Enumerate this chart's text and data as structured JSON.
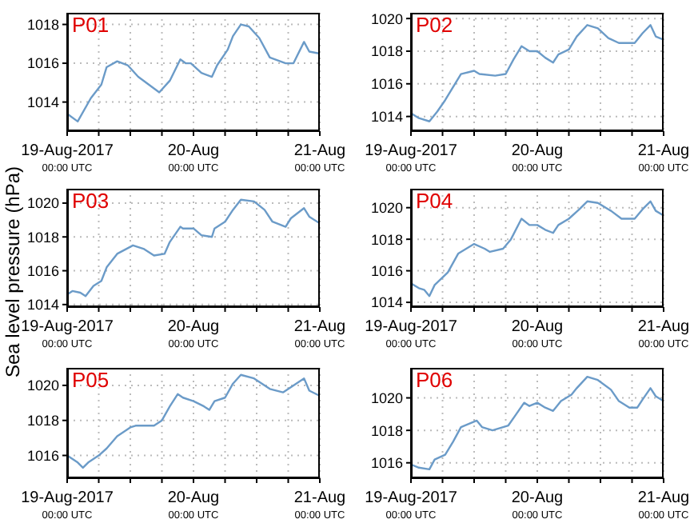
{
  "chart_data": [
    {
      "type": "line",
      "title": "P01",
      "ylabel": null,
      "x": [
        "2017-08-19T00:00",
        "2017-08-19T02:00",
        "2017-08-19T04:30",
        "2017-08-19T06:30",
        "2017-08-19T07:30",
        "2017-08-19T09:30",
        "2017-08-19T11:30",
        "2017-08-19T13:30",
        "2017-08-19T15:30",
        "2017-08-19T17:30",
        "2017-08-19T19:30",
        "2017-08-19T21:30",
        "2017-08-19T22:30",
        "2017-08-19T23:30",
        "2017-08-20T01:30",
        "2017-08-20T03:30",
        "2017-08-20T04:30",
        "2017-08-20T06:30",
        "2017-08-20T07:30",
        "2017-08-20T09:00",
        "2017-08-20T10:30",
        "2017-08-20T12:30",
        "2017-08-20T14:30",
        "2017-08-20T17:30",
        "2017-08-20T19:00",
        "2017-08-20T21:00",
        "2017-08-20T22:00",
        "2017-08-21T00:00"
      ],
      "series": [
        {
          "color": "#6b9bc8",
          "values": [
            1013.4,
            1013.0,
            1014.2,
            1014.9,
            1015.8,
            1016.1,
            1015.9,
            1015.3,
            1014.9,
            1014.5,
            1015.1,
            1016.2,
            1016.0,
            1016.0,
            1015.5,
            1015.3,
            1015.9,
            1016.7,
            1017.4,
            1018.0,
            1017.9,
            1017.3,
            1016.3,
            1016.0,
            1016.0,
            1017.1,
            1016.6,
            1016.5
          ]
        }
      ],
      "xlim": [
        "2017-08-19T00:00",
        "2017-08-21T00:00"
      ],
      "xticks": [
        {
          "value": "2017-08-19T00:00",
          "label": "19-Aug-2017\n00:00 UTC"
        },
        {
          "value": "2017-08-19T06:00",
          "label": null
        },
        {
          "value": "2017-08-19T12:00",
          "label": null
        },
        {
          "value": "2017-08-19T18:00",
          "label": null
        },
        {
          "value": "2017-08-20T00:00",
          "label": "20-Aug\n00:00 UTC"
        },
        {
          "value": "2017-08-20T06:00",
          "label": null
        },
        {
          "value": "2017-08-20T12:00",
          "label": null
        },
        {
          "value": "2017-08-20T18:00",
          "label": null
        },
        {
          "value": "2017-08-21T00:00",
          "label": "21-Aug\n00:00 UTC"
        }
      ],
      "ylim": [
        1012.5,
        1018.6
      ],
      "yticks": [
        1014,
        1016,
        1018
      ],
      "grid": true
    },
    {
      "type": "line",
      "title": "P02",
      "x": [
        "2017-08-19T00:00",
        "2017-08-19T01:30",
        "2017-08-19T03:30",
        "2017-08-19T05:00",
        "2017-08-19T06:30",
        "2017-08-19T08:00",
        "2017-08-19T09:30",
        "2017-08-19T12:00",
        "2017-08-19T13:00",
        "2017-08-19T16:00",
        "2017-08-19T18:00",
        "2017-08-19T19:30",
        "2017-08-19T21:00",
        "2017-08-19T22:30",
        "2017-08-20T00:00",
        "2017-08-20T01:30",
        "2017-08-20T03:00",
        "2017-08-20T04:00",
        "2017-08-20T06:00",
        "2017-08-20T07:30",
        "2017-08-20T09:30",
        "2017-08-20T11:30",
        "2017-08-20T13:30",
        "2017-08-20T15:30",
        "2017-08-20T18:30",
        "2017-08-20T20:00",
        "2017-08-20T21:30",
        "2017-08-20T22:30",
        "2017-08-21T00:00"
      ],
      "series": [
        {
          "color": "#6b9bc8",
          "values": [
            1014.2,
            1013.9,
            1013.7,
            1014.3,
            1015.0,
            1015.8,
            1016.6,
            1016.8,
            1016.6,
            1016.5,
            1016.6,
            1017.5,
            1018.3,
            1018.0,
            1018.0,
            1017.6,
            1017.3,
            1017.8,
            1018.1,
            1018.9,
            1019.6,
            1019.4,
            1018.8,
            1018.5,
            1018.5,
            1019.1,
            1019.6,
            1018.9,
            1018.7
          ]
        }
      ],
      "xlim": [
        "2017-08-19T00:00",
        "2017-08-21T00:00"
      ],
      "xticks": [
        {
          "value": "2017-08-19T00:00",
          "label": "19-Aug-2017\n00:00 UTC"
        },
        {
          "value": "2017-08-19T06:00",
          "label": null
        },
        {
          "value": "2017-08-19T12:00",
          "label": null
        },
        {
          "value": "2017-08-19T18:00",
          "label": null
        },
        {
          "value": "2017-08-20T00:00",
          "label": "20-Aug\n00:00 UTC"
        },
        {
          "value": "2017-08-20T06:00",
          "label": null
        },
        {
          "value": "2017-08-20T12:00",
          "label": null
        },
        {
          "value": "2017-08-20T18:00",
          "label": null
        },
        {
          "value": "2017-08-21T00:00",
          "label": "21-Aug\n00:00 UTC"
        }
      ],
      "ylim": [
        1013.1,
        1020.35
      ],
      "yticks": [
        1014,
        1016,
        1018,
        1020
      ],
      "grid": true
    },
    {
      "type": "line",
      "title": "P03",
      "ylabel": "Sea level pressure (hPa)",
      "x": [
        "2017-08-19T00:00",
        "2017-08-19T01:00",
        "2017-08-19T02:30",
        "2017-08-19T03:30",
        "2017-08-19T05:00",
        "2017-08-19T06:30",
        "2017-08-19T07:30",
        "2017-08-19T09:30",
        "2017-08-19T12:30",
        "2017-08-19T14:30",
        "2017-08-19T16:30",
        "2017-08-19T18:30",
        "2017-08-19T19:30",
        "2017-08-19T21:30",
        "2017-08-19T22:00",
        "2017-08-20T00:00",
        "2017-08-20T01:30",
        "2017-08-20T03:30",
        "2017-08-20T04:00",
        "2017-08-20T06:00",
        "2017-08-20T07:30",
        "2017-08-20T09:00",
        "2017-08-20T11:30",
        "2017-08-20T13:30",
        "2017-08-20T15:00",
        "2017-08-20T17:30",
        "2017-08-20T18:30",
        "2017-08-20T21:00",
        "2017-08-20T22:00",
        "2017-08-21T00:00"
      ],
      "series": [
        {
          "color": "#6b9bc8",
          "values": [
            1014.6,
            1014.8,
            1014.7,
            1014.5,
            1015.1,
            1015.4,
            1016.2,
            1017.0,
            1017.5,
            1017.3,
            1016.9,
            1017.0,
            1017.7,
            1018.6,
            1018.5,
            1018.5,
            1018.1,
            1018.0,
            1018.5,
            1018.9,
            1019.6,
            1020.2,
            1020.1,
            1019.6,
            1018.9,
            1018.6,
            1019.1,
            1019.7,
            1019.2,
            1018.8
          ]
        }
      ],
      "xlim": [
        "2017-08-19T00:00",
        "2017-08-21T00:00"
      ],
      "xticks": [
        {
          "value": "2017-08-19T00:00",
          "label": "19-Aug-2017\n00:00 UTC"
        },
        {
          "value": "2017-08-19T06:00",
          "label": null
        },
        {
          "value": "2017-08-19T12:00",
          "label": null
        },
        {
          "value": "2017-08-19T18:00",
          "label": null
        },
        {
          "value": "2017-08-20T00:00",
          "label": "20-Aug\n00:00 UTC"
        },
        {
          "value": "2017-08-20T06:00",
          "label": null
        },
        {
          "value": "2017-08-20T12:00",
          "label": null
        },
        {
          "value": "2017-08-20T18:00",
          "label": null
        },
        {
          "value": "2017-08-21T00:00",
          "label": "21-Aug\n00:00 UTC"
        }
      ],
      "ylim": [
        1013.85,
        1020.85
      ],
      "yticks": [
        1014,
        1016,
        1018,
        1020
      ],
      "grid": true
    },
    {
      "type": "line",
      "title": "P04",
      "x": [
        "2017-08-19T00:00",
        "2017-08-19T01:30",
        "2017-08-19T02:30",
        "2017-08-19T03:30",
        "2017-08-19T04:30",
        "2017-08-19T07:00",
        "2017-08-19T09:00",
        "2017-08-19T12:00",
        "2017-08-19T14:00",
        "2017-08-19T15:00",
        "2017-08-19T17:30",
        "2017-08-19T19:00",
        "2017-08-19T21:00",
        "2017-08-19T22:30",
        "2017-08-20T00:00",
        "2017-08-20T01:30",
        "2017-08-20T03:00",
        "2017-08-20T04:00",
        "2017-08-20T06:00",
        "2017-08-20T08:00",
        "2017-08-20T09:30",
        "2017-08-20T11:30",
        "2017-08-20T14:00",
        "2017-08-20T16:00",
        "2017-08-20T18:30",
        "2017-08-20T20:00",
        "2017-08-20T21:30",
        "2017-08-20T22:30",
        "2017-08-21T00:00"
      ],
      "series": [
        {
          "color": "#6b9bc8",
          "values": [
            1015.2,
            1014.9,
            1014.8,
            1014.4,
            1015.1,
            1015.9,
            1017.1,
            1017.7,
            1017.4,
            1017.2,
            1017.4,
            1018.0,
            1019.3,
            1018.9,
            1018.9,
            1018.6,
            1018.4,
            1018.9,
            1019.3,
            1019.9,
            1020.4,
            1020.3,
            1019.8,
            1019.3,
            1019.3,
            1019.9,
            1020.4,
            1019.8,
            1019.5
          ]
        }
      ],
      "xlim": [
        "2017-08-19T00:00",
        "2017-08-21T00:00"
      ],
      "xticks": [
        {
          "value": "2017-08-19T00:00",
          "label": "19-Aug-2017\n00:00 UTC"
        },
        {
          "value": "2017-08-19T06:00",
          "label": null
        },
        {
          "value": "2017-08-19T12:00",
          "label": null
        },
        {
          "value": "2017-08-19T18:00",
          "label": null
        },
        {
          "value": "2017-08-20T00:00",
          "label": "20-Aug\n00:00 UTC"
        },
        {
          "value": "2017-08-20T06:00",
          "label": null
        },
        {
          "value": "2017-08-20T12:00",
          "label": null
        },
        {
          "value": "2017-08-20T18:00",
          "label": null
        },
        {
          "value": "2017-08-21T00:00",
          "label": "21-Aug\n00:00 UTC"
        }
      ],
      "ylim": [
        1013.7,
        1021.2
      ],
      "yticks": [
        1014,
        1016,
        1018,
        1020
      ],
      "grid": true
    },
    {
      "type": "line",
      "title": "P05",
      "x": [
        "2017-08-19T00:00",
        "2017-08-19T02:00",
        "2017-08-19T03:00",
        "2017-08-19T04:00",
        "2017-08-19T06:00",
        "2017-08-19T07:30",
        "2017-08-19T09:30",
        "2017-08-19T12:00",
        "2017-08-19T13:00",
        "2017-08-19T14:30",
        "2017-08-19T16:30",
        "2017-08-19T18:00",
        "2017-08-19T19:30",
        "2017-08-19T21:00",
        "2017-08-19T22:00",
        "2017-08-20T00:00",
        "2017-08-20T02:00",
        "2017-08-20T03:00",
        "2017-08-20T04:00",
        "2017-08-20T06:00",
        "2017-08-20T07:30",
        "2017-08-20T09:00",
        "2017-08-20T11:30",
        "2017-08-20T14:30",
        "2017-08-20T17:00",
        "2017-08-20T19:00",
        "2017-08-20T21:00",
        "2017-08-20T22:00",
        "2017-08-21T00:00"
      ],
      "series": [
        {
          "color": "#6b9bc8",
          "values": [
            1016.0,
            1015.6,
            1015.3,
            1015.6,
            1016.0,
            1016.4,
            1017.1,
            1017.6,
            1017.7,
            1017.7,
            1017.7,
            1018.0,
            1018.8,
            1019.5,
            1019.3,
            1019.1,
            1018.8,
            1018.6,
            1019.1,
            1019.3,
            1020.1,
            1020.6,
            1020.4,
            1019.8,
            1019.6,
            1020.0,
            1020.4,
            1019.7,
            1019.4
          ]
        }
      ],
      "xlim": [
        "2017-08-19T00:00",
        "2017-08-21T00:00"
      ],
      "xticks": [
        {
          "value": "2017-08-19T00:00",
          "label": "19-Aug-2017\n00:00 UTC"
        },
        {
          "value": "2017-08-19T06:00",
          "label": null
        },
        {
          "value": "2017-08-19T12:00",
          "label": null
        },
        {
          "value": "2017-08-19T18:00",
          "label": null
        },
        {
          "value": "2017-08-20T00:00",
          "label": "20-Aug\n00:00 UTC"
        },
        {
          "value": "2017-08-20T06:00",
          "label": null
        },
        {
          "value": "2017-08-20T12:00",
          "label": null
        },
        {
          "value": "2017-08-20T18:00",
          "label": null
        },
        {
          "value": "2017-08-21T00:00",
          "label": "21-Aug\n00:00 UTC"
        }
      ],
      "ylim": [
        1014.7,
        1021.0
      ],
      "yticks": [
        1016,
        1018,
        1020
      ],
      "grid": true
    },
    {
      "type": "line",
      "title": "P06",
      "x": [
        "2017-08-19T00:00",
        "2017-08-19T01:30",
        "2017-08-19T03:30",
        "2017-08-19T04:30",
        "2017-08-19T06:30",
        "2017-08-19T08:00",
        "2017-08-19T09:30",
        "2017-08-19T12:30",
        "2017-08-19T13:30",
        "2017-08-19T15:30",
        "2017-08-19T17:30",
        "2017-08-19T18:30",
        "2017-08-19T20:00",
        "2017-08-19T21:30",
        "2017-08-19T22:30",
        "2017-08-20T00:00",
        "2017-08-20T01:30",
        "2017-08-20T03:00",
        "2017-08-20T04:30",
        "2017-08-20T06:30",
        "2017-08-20T07:30",
        "2017-08-20T09:30",
        "2017-08-20T11:30",
        "2017-08-20T14:00",
        "2017-08-20T15:30",
        "2017-08-20T17:30",
        "2017-08-20T19:00",
        "2017-08-20T20:00",
        "2017-08-20T21:30",
        "2017-08-20T22:30",
        "2017-08-21T00:00"
      ],
      "series": [
        {
          "color": "#6b9bc8",
          "values": [
            1015.9,
            1015.7,
            1015.6,
            1016.2,
            1016.5,
            1017.3,
            1018.2,
            1018.6,
            1018.2,
            1018.0,
            1018.2,
            1018.3,
            1019.0,
            1019.7,
            1019.5,
            1019.7,
            1019.4,
            1019.2,
            1019.8,
            1020.2,
            1020.6,
            1021.3,
            1021.1,
            1020.5,
            1019.8,
            1019.4,
            1019.4,
            1019.9,
            1020.6,
            1020.1,
            1019.8
          ]
        }
      ],
      "xlim": [
        "2017-08-19T00:00",
        "2017-08-21T00:00"
      ],
      "xticks": [
        {
          "value": "2017-08-19T00:00",
          "label": "19-Aug-2017\n00:00 UTC"
        },
        {
          "value": "2017-08-19T06:00",
          "label": null
        },
        {
          "value": "2017-08-19T12:00",
          "label": null
        },
        {
          "value": "2017-08-19T18:00",
          "label": null
        },
        {
          "value": "2017-08-20T00:00",
          "label": "20-Aug\n00:00 UTC"
        },
        {
          "value": "2017-08-20T06:00",
          "label": null
        },
        {
          "value": "2017-08-20T12:00",
          "label": null
        },
        {
          "value": "2017-08-20T18:00",
          "label": null
        },
        {
          "value": "2017-08-21T00:00",
          "label": "21-Aug\n00:00 UTC"
        }
      ],
      "ylim": [
        1015.05,
        1021.85
      ],
      "yticks": [
        1016,
        1018,
        1020
      ],
      "grid": true
    }
  ]
}
